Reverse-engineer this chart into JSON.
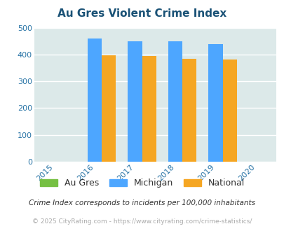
{
  "title": "Au Gres Violent Crime Index",
  "years": [
    2015,
    2016,
    2017,
    2018,
    2019,
    2020
  ],
  "categories": [
    "Au Gres",
    "Michigan",
    "National"
  ],
  "michigan_values": [
    460,
    450,
    450,
    438
  ],
  "national_values": [
    398,
    394,
    383,
    382
  ],
  "augres_values": [
    0,
    0,
    0,
    0
  ],
  "bar_years": [
    2016,
    2017,
    2018,
    2019
  ],
  "colors": {
    "Au Gres": "#76c043",
    "Michigan": "#4da6ff",
    "National": "#f5a623"
  },
  "xlim": [
    2014.5,
    2020.5
  ],
  "ylim": [
    0,
    500
  ],
  "yticks": [
    0,
    100,
    200,
    300,
    400,
    500
  ],
  "plot_bg_color": "#dce9e9",
  "title_color": "#1a5276",
  "tick_color": "#2874a6",
  "grid_color": "#ffffff",
  "footer_text1": "Crime Index corresponds to incidents per 100,000 inhabitants",
  "footer_text2": "© 2025 CityRating.com - https://www.cityrating.com/crime-statistics/",
  "bar_width": 0.35
}
